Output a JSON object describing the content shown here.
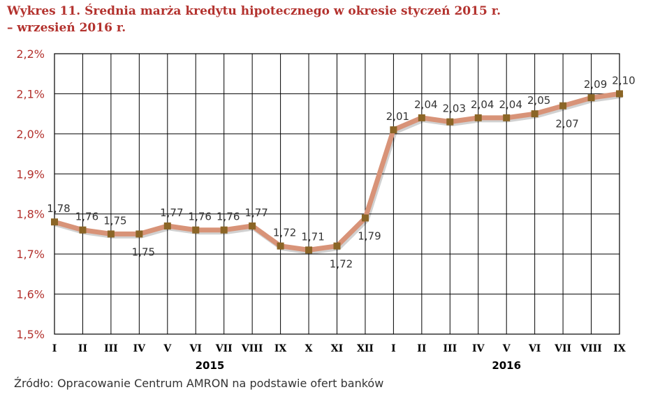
{
  "title": {
    "line1": "Wykres 11. Średnia marża kredytu hipotecznego w okresie styczeń 2015 r.",
    "line2": "– wrzesień 2016 r."
  },
  "source": "Źródło: Opracowanie Centrum AMRON na podstawie ofert banków",
  "colors": {
    "title": "#b3322e",
    "axis_labels": "#b3322e",
    "line": "#d89378",
    "marker": "#8b6526",
    "grid": "#000000"
  },
  "chart_data": {
    "type": "line",
    "categories": [
      "I",
      "II",
      "III",
      "IV",
      "V",
      "VI",
      "VII",
      "VIII",
      "IX",
      "X",
      "XI",
      "XII",
      "I",
      "II",
      "III",
      "IV",
      "V",
      "VI",
      "VII",
      "VIII",
      "IX"
    ],
    "year_labels": [
      {
        "label": "2015",
        "from": 0,
        "to": 11
      },
      {
        "label": "2016",
        "from": 12,
        "to": 20
      }
    ],
    "series": [
      {
        "values": [
          1.78,
          1.76,
          1.75,
          1.75,
          1.77,
          1.76,
          1.76,
          1.77,
          1.72,
          1.71,
          1.72,
          1.79,
          2.01,
          2.04,
          2.03,
          2.04,
          2.04,
          2.05,
          2.07,
          2.09,
          2.1
        ],
        "labels": [
          "1,78",
          "1,76",
          "1,75",
          "1,75",
          "1,77",
          "1,76",
          "1,76",
          "1,77",
          "1,72",
          "1,71",
          "1,72",
          "1,79",
          "2,01",
          "2,04",
          "2,03",
          "2,04",
          "2,04",
          "2,05",
          "2,07",
          "2,09",
          "2,10"
        ],
        "label_position": [
          "above",
          "above",
          "above",
          "below",
          "above",
          "above",
          "above",
          "above",
          "above",
          "above",
          "below",
          "below",
          "above",
          "above",
          "above",
          "above",
          "above",
          "above",
          "below",
          "above",
          "above"
        ]
      }
    ],
    "ylim": [
      1.5,
      2.2
    ],
    "yticks": [
      1.5,
      1.6,
      1.7,
      1.8,
      1.9,
      2.0,
      2.1,
      2.2
    ],
    "ytick_labels": [
      "1,5%",
      "1,6%",
      "1,7%",
      "1,8%",
      "1,9%",
      "2,0%",
      "2,1%",
      "2,2%"
    ],
    "grid": true,
    "legend": "none"
  }
}
